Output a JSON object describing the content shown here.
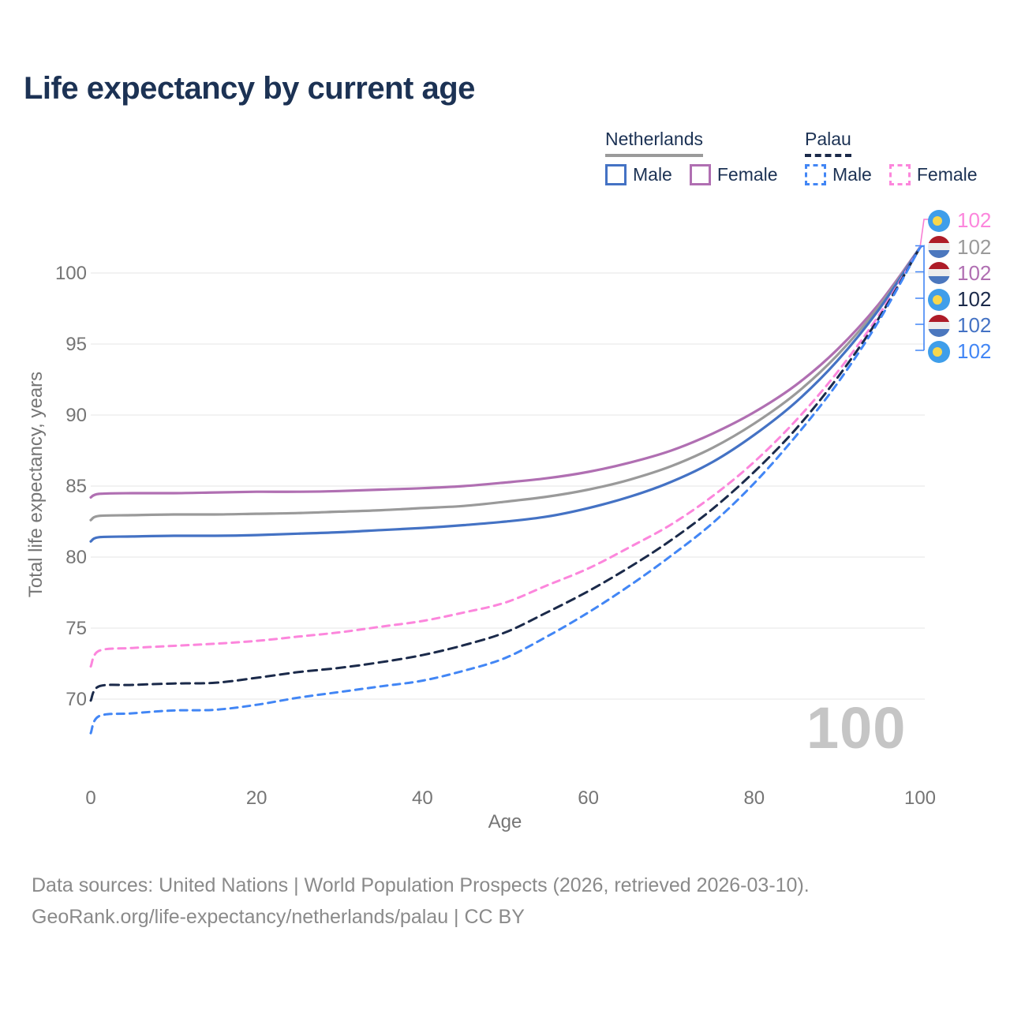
{
  "title": "Life expectancy by current age",
  "legend": {
    "groups": [
      {
        "label": "Netherlands",
        "line_style": "solid",
        "underline_color": "#9a9a9a",
        "items": [
          {
            "label": "Male",
            "color": "#4472c4"
          },
          {
            "label": "Female",
            "color": "#b06fb2"
          }
        ]
      },
      {
        "label": "Palau",
        "line_style": "dashed",
        "underline_color": "#1b2a4a",
        "items": [
          {
            "label": "Male",
            "color": "#4286f5"
          },
          {
            "label": "Female",
            "color": "#fc86dc"
          }
        ]
      }
    ]
  },
  "hover_age_watermark": "100",
  "footer": {
    "line1": "Data sources: United Nations | World Population Prospects (2026, retrieved 2026-03-10).",
    "line2": "GeoRank.org/life-expectancy/netherlands/palau | CC BY"
  },
  "chart_data": {
    "type": "line",
    "title": "Life expectancy by current age",
    "xlabel": "Age",
    "ylabel": "Total life expectancy, years",
    "x_ticks": [
      0,
      20,
      40,
      60,
      80,
      100
    ],
    "y_ticks": [
      70,
      75,
      80,
      85,
      90,
      95,
      100
    ],
    "xlim": [
      0,
      100
    ],
    "ylim": [
      67,
      102.5
    ],
    "grid": "horizontal",
    "gridline_color": "#eaeaea",
    "x": [
      0,
      1,
      5,
      10,
      15,
      20,
      25,
      30,
      35,
      40,
      45,
      50,
      55,
      60,
      65,
      70,
      75,
      80,
      85,
      90,
      95,
      100
    ],
    "series": [
      {
        "name": "Netherlands Female",
        "country": "Netherlands",
        "sex": "Female",
        "style": "solid",
        "color": "#b06fb2",
        "end_label": "102",
        "flag": "netherlands",
        "values": [
          84.2,
          84.45,
          84.5,
          84.5,
          84.55,
          84.6,
          84.6,
          84.65,
          84.75,
          84.85,
          85.0,
          85.25,
          85.55,
          86.0,
          86.65,
          87.5,
          88.7,
          90.2,
          92.1,
          94.6,
          97.8,
          101.8
        ]
      },
      {
        "name": "Netherlands Both sexes",
        "country": "Netherlands",
        "sex": "Both",
        "style": "solid",
        "color": "#9a9a9a",
        "end_label": "102",
        "flag": "netherlands",
        "values": [
          82.6,
          82.9,
          82.95,
          83.0,
          83.0,
          83.05,
          83.1,
          83.2,
          83.3,
          83.45,
          83.6,
          83.9,
          84.25,
          84.75,
          85.45,
          86.4,
          87.7,
          89.4,
          91.5,
          94.2,
          97.6,
          101.8
        ]
      },
      {
        "name": "Netherlands Male",
        "country": "Netherlands",
        "sex": "Male",
        "style": "solid",
        "color": "#4472c4",
        "end_label": "102",
        "flag": "netherlands",
        "values": [
          81.1,
          81.4,
          81.45,
          81.5,
          81.5,
          81.55,
          81.65,
          81.75,
          81.9,
          82.05,
          82.25,
          82.5,
          82.85,
          83.45,
          84.25,
          85.3,
          86.7,
          88.6,
          90.9,
          93.8,
          97.4,
          101.8
        ]
      },
      {
        "name": "Palau Female",
        "country": "Palau",
        "sex": "Female",
        "style": "dashed",
        "color": "#fc86dc",
        "end_label": "102",
        "flag": "palau",
        "values": [
          72.3,
          73.4,
          73.6,
          73.75,
          73.9,
          74.1,
          74.4,
          74.7,
          75.1,
          75.5,
          76.1,
          76.8,
          78.0,
          79.2,
          80.7,
          82.3,
          84.3,
          86.7,
          89.6,
          93.0,
          97.0,
          101.8
        ]
      },
      {
        "name": "Palau Both sexes",
        "country": "Palau",
        "sex": "Both",
        "style": "dashed",
        "color": "#1b2a4a",
        "end_label": "102",
        "flag": "palau",
        "values": [
          69.9,
          70.9,
          71.0,
          71.1,
          71.15,
          71.5,
          71.9,
          72.2,
          72.6,
          73.1,
          73.8,
          74.7,
          76.1,
          77.6,
          79.3,
          81.2,
          83.4,
          86.0,
          89.0,
          92.6,
          96.8,
          101.8
        ]
      },
      {
        "name": "Palau Male",
        "country": "Palau",
        "sex": "Male",
        "style": "dashed",
        "color": "#4286f5",
        "end_label": "102",
        "flag": "palau",
        "values": [
          67.6,
          68.8,
          69.0,
          69.2,
          69.25,
          69.6,
          70.1,
          70.5,
          70.9,
          71.3,
          72.0,
          72.9,
          74.4,
          76.1,
          78.0,
          80.1,
          82.4,
          85.2,
          88.5,
          92.2,
          96.6,
          101.8
        ]
      }
    ],
    "end_label_row_order": [
      3,
      1,
      0,
      4,
      2,
      5
    ],
    "leader_colors": {
      "top": "#f77fd4",
      "bracket": "#4286f5"
    }
  }
}
